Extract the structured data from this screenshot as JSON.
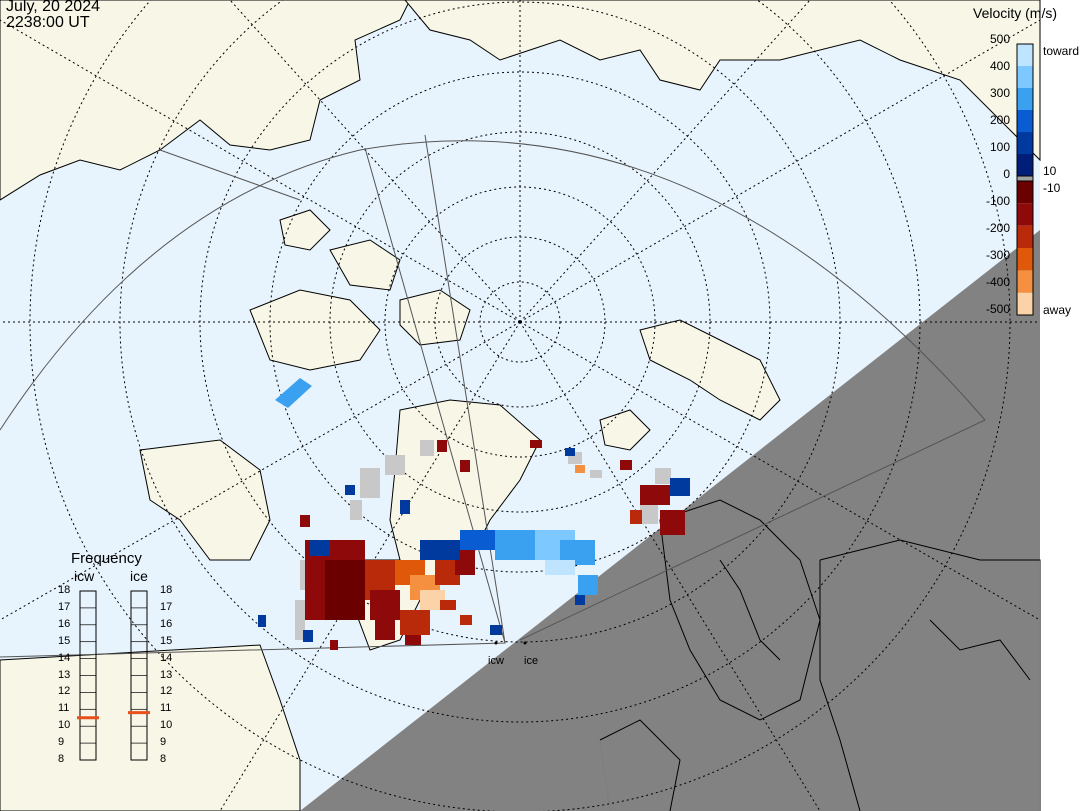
{
  "header": {
    "date": "July, 20 2024",
    "time": "2238:00 UT"
  },
  "colorbar": {
    "title": "Velocity (m/s)",
    "ticks": [
      "500",
      "400",
      "300",
      "200",
      "100",
      "0",
      "-100",
      "-200",
      "-300",
      "-400",
      "-500"
    ],
    "toward_label": "toward",
    "away_label": "away",
    "pos_threshold": "10",
    "neg_threshold": "-10",
    "toward_colors": [
      "#bfe4ff",
      "#7cc8ff",
      "#3aa0f0",
      "#0a5cd2",
      "#003a9e",
      "#001e78"
    ],
    "away_colors": [
      "#6a0000",
      "#8e0a0a",
      "#b82a0a",
      "#e0580a",
      "#f49040",
      "#fcd3a8"
    ]
  },
  "frequency": {
    "title": "Frequency",
    "radars": [
      "icw",
      "ice"
    ],
    "scale": [
      "18",
      "17",
      "16",
      "15",
      "14",
      "13",
      "12",
      "11",
      "10",
      "9",
      "8"
    ],
    "icw_mhz": 10.5,
    "ice_mhz": 10.8
  },
  "map": {
    "sites": [
      "icw",
      "ice"
    ],
    "colors": {
      "land": "#f7f6e7",
      "ocean": "#e8f4fd",
      "night": "#7f7f7f",
      "ground_scatter": "#c8c8c8"
    }
  }
}
